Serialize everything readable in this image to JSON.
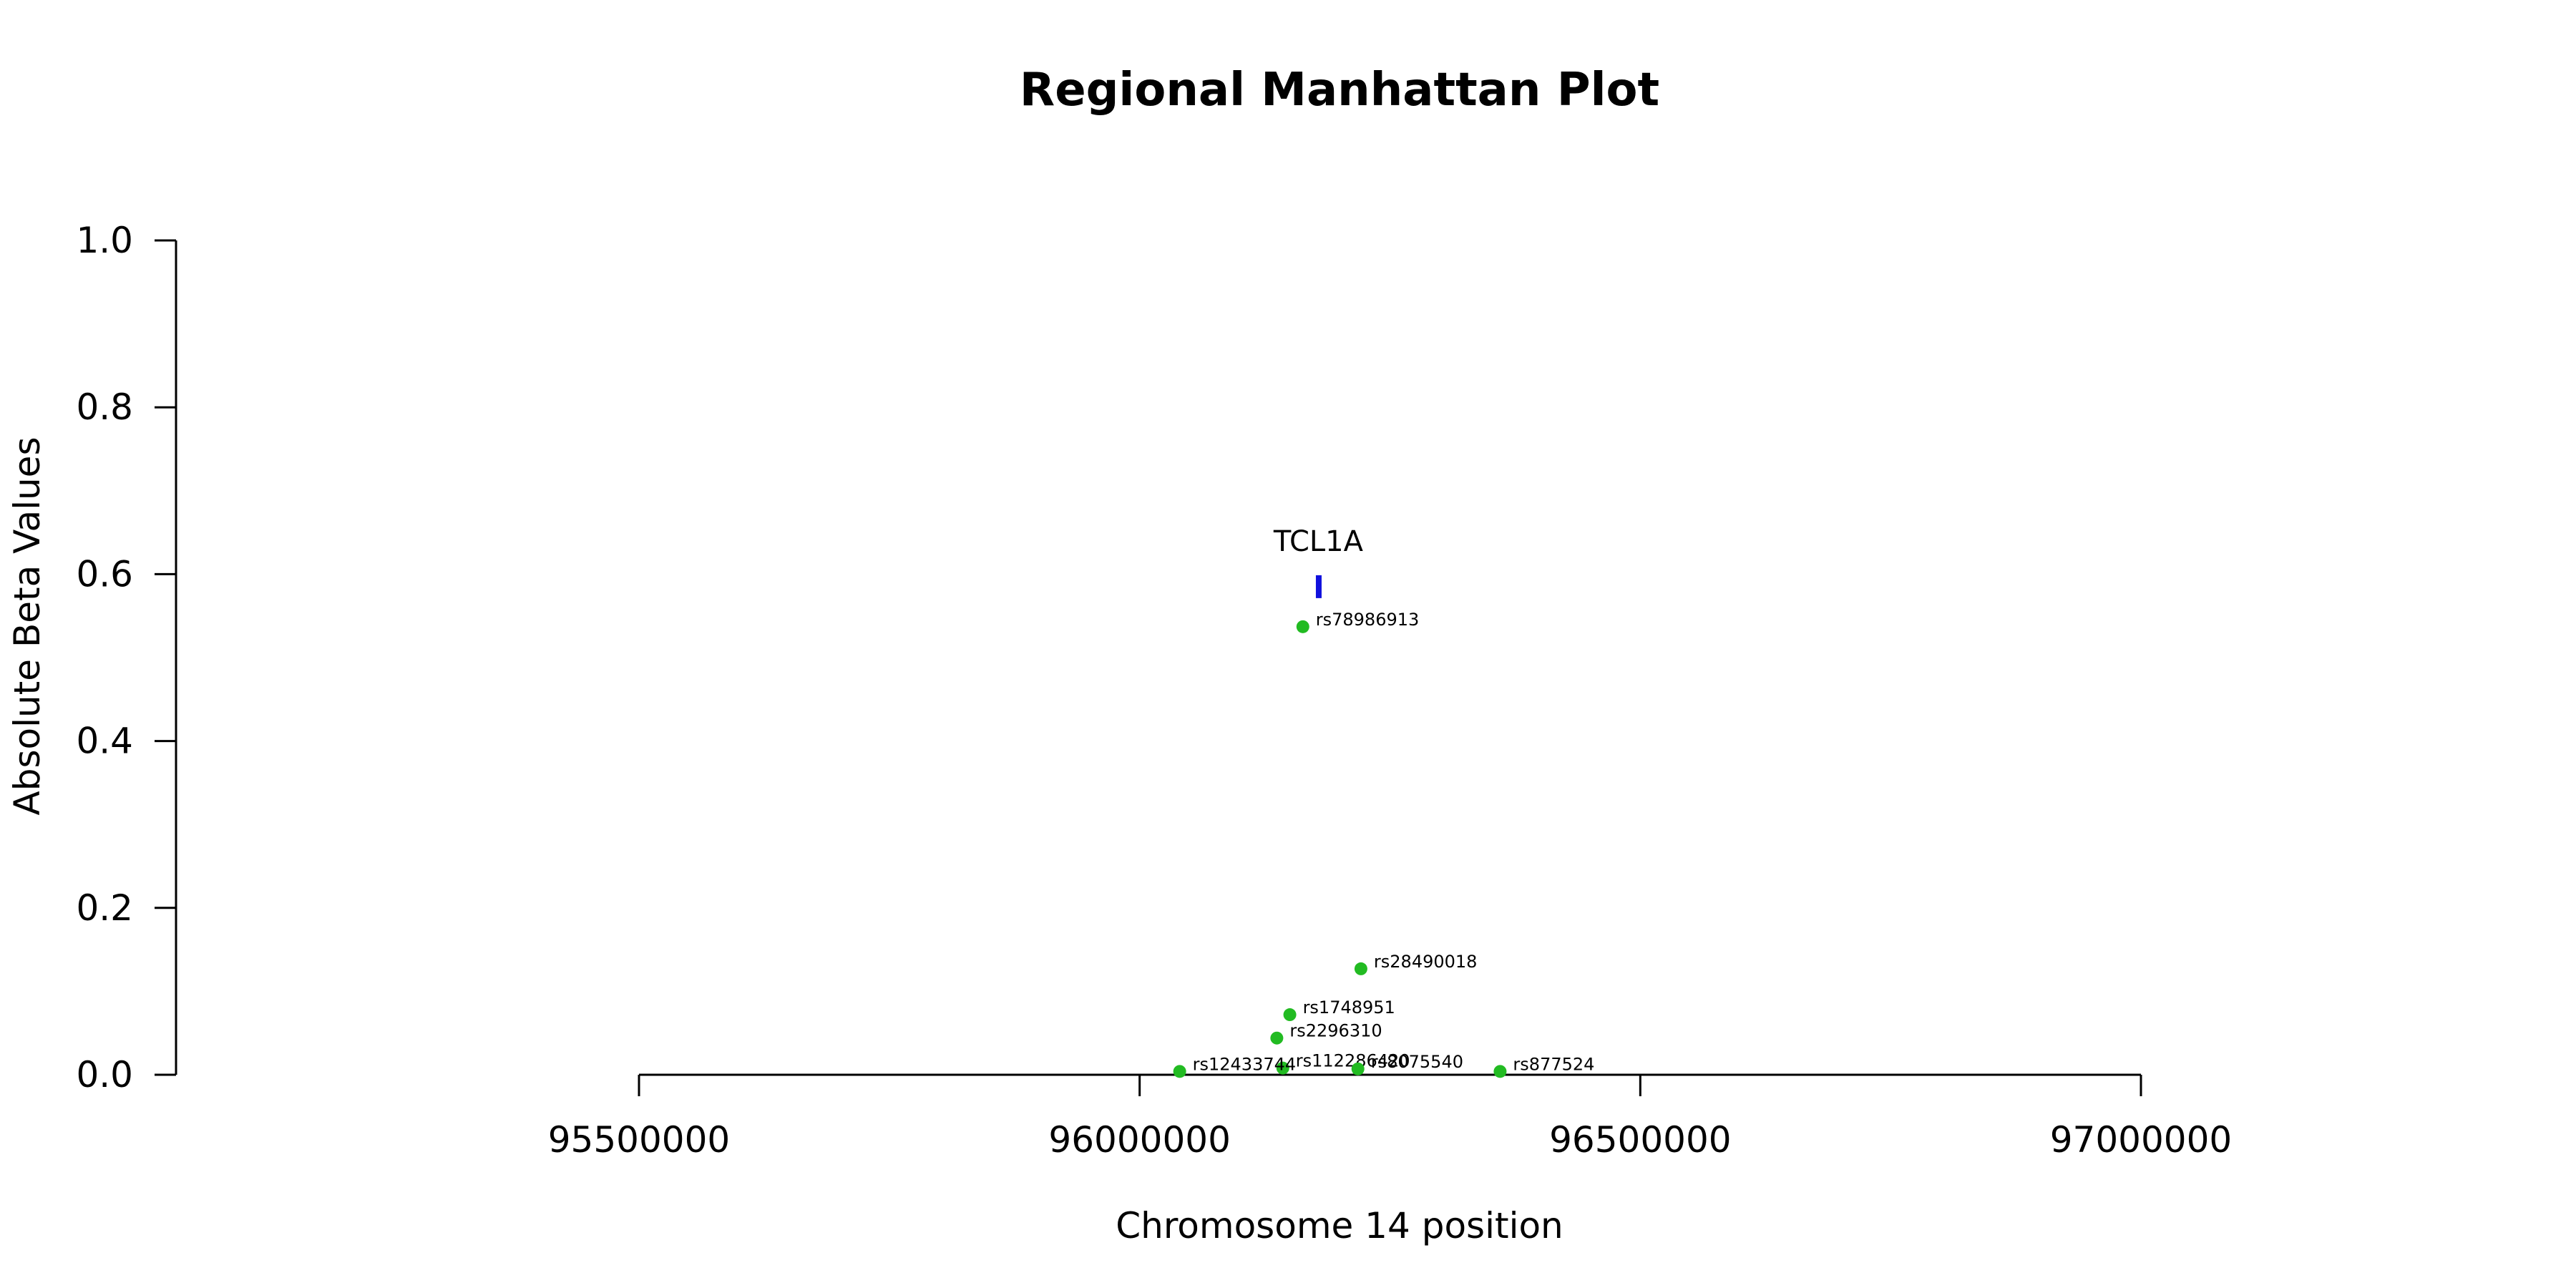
{
  "chart_data": {
    "type": "scatter",
    "title": "Regional Manhattan Plot",
    "xlabel": "Chromosome 14 position",
    "ylabel": "Absolute Beta Values",
    "xlim": [
      95500000,
      97000000
    ],
    "ylim": [
      0,
      1.0
    ],
    "x_ticks": [
      95500000,
      96000000,
      96500000,
      97000000
    ],
    "x_tick_labels": [
      "95500000",
      "96000000",
      "96500000",
      "97000000"
    ],
    "y_ticks": [
      0.0,
      0.2,
      0.4,
      0.6,
      0.8,
      1.0
    ],
    "y_tick_labels": [
      "0.0",
      "0.2",
      "0.4",
      "0.6",
      "0.8",
      "1.0"
    ],
    "grid": false,
    "point_color": "#22bb22",
    "gene_color": "#1010dd",
    "points": [
      {
        "label": "rs78986913",
        "x": 96163000,
        "y": 0.537
      },
      {
        "label": "rs28490018",
        "x": 96221000,
        "y": 0.127
      },
      {
        "label": "rs1748951",
        "x": 96150000,
        "y": 0.072
      },
      {
        "label": "rs2296310",
        "x": 96137000,
        "y": 0.044
      },
      {
        "label": "rs112286420",
        "x": 96143000,
        "y": 0.008
      },
      {
        "label": "rs8075540",
        "x": 96218000,
        "y": 0.007
      },
      {
        "label": "rs12433744",
        "x": 96040000,
        "y": 0.004
      },
      {
        "label": "rs877524",
        "x": 96360000,
        "y": 0.004
      }
    ],
    "genes": [
      {
        "name": "TCL1A",
        "start": 96176000,
        "end": 96181000,
        "y": 0.585
      }
    ]
  }
}
